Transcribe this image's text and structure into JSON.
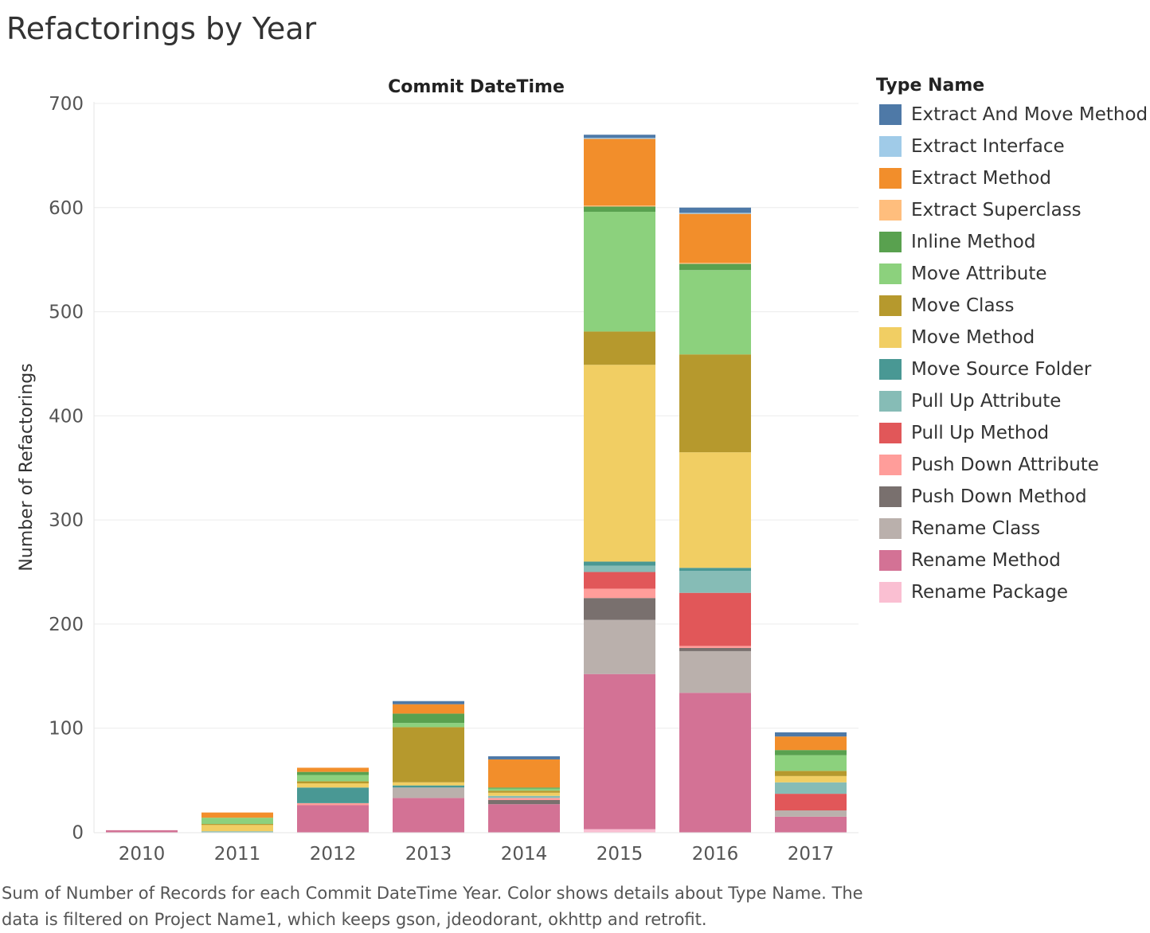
{
  "title": "Refactorings by Year",
  "caption": "Sum of Number of Records for each Commit DateTime Year.  Color shows details about Type Name. The data is filtered on Project Name1, which keeps gson, jdeodorant, okhttp and retrofit.",
  "legend_title": "Type Name",
  "colors": {
    "Extract And Move Method": "#4e79a7",
    "Extract Interface": "#a0cbe8",
    "Extract Method": "#f28e2b",
    "Extract Superclass": "#ffbe7d",
    "Inline Method": "#59a14f",
    "Move Attribute": "#8cd17d",
    "Move Class": "#b6992d",
    "Move Method": "#f1ce63",
    "Move Source Folder": "#499894",
    "Pull Up Attribute": "#86bcb6",
    "Pull Up Method": "#e15759",
    "Push Down Attribute": "#ff9d9a",
    "Push Down Method": "#79706e",
    "Rename Class": "#bab0ac",
    "Rename Method": "#d37295",
    "Rename Package": "#fabfd2"
  },
  "chart_data": {
    "type": "bar",
    "stacked": true,
    "title": "Refactorings by Year",
    "column_header": "Commit DateTime",
    "xlabel": "",
    "ylabel": "Number of Refactorings",
    "ylim": [
      -14,
      700
    ],
    "yticks": [
      0,
      100,
      200,
      300,
      400,
      500,
      600,
      700
    ],
    "grid": true,
    "legend_position": "right",
    "categories": [
      "2010",
      "2011",
      "2012",
      "2013",
      "2014",
      "2015",
      "2016",
      "2017"
    ],
    "series": [
      {
        "name": "Rename Package",
        "values": [
          0,
          0,
          0,
          0,
          0,
          3,
          0,
          0
        ]
      },
      {
        "name": "Rename Method",
        "values": [
          2,
          0,
          26,
          33,
          27,
          149,
          134,
          15
        ]
      },
      {
        "name": "Rename Class",
        "values": [
          0,
          0,
          0,
          10,
          0,
          52,
          40,
          6
        ]
      },
      {
        "name": "Push Down Method",
        "values": [
          0,
          0,
          0,
          0,
          4,
          21,
          3,
          0
        ]
      },
      {
        "name": "Push Down Attribute",
        "values": [
          0,
          0,
          2,
          0,
          2,
          9,
          2,
          0
        ]
      },
      {
        "name": "Pull Up Method",
        "values": [
          0,
          0,
          0,
          0,
          0,
          16,
          51,
          16
        ]
      },
      {
        "name": "Pull Up Attribute",
        "values": [
          0,
          1,
          0,
          0,
          2,
          6,
          21,
          11
        ]
      },
      {
        "name": "Move Source Folder",
        "values": [
          0,
          0,
          15,
          2,
          0,
          4,
          3,
          0
        ]
      },
      {
        "name": "Move Method",
        "values": [
          0,
          6,
          4,
          3,
          3,
          189,
          111,
          6
        ]
      },
      {
        "name": "Move Class",
        "values": [
          0,
          1,
          2,
          53,
          2,
          32,
          94,
          5
        ]
      },
      {
        "name": "Move Attribute",
        "values": [
          0,
          6,
          6,
          4,
          2,
          115,
          81,
          15
        ]
      },
      {
        "name": "Inline Method",
        "values": [
          0,
          0,
          3,
          9,
          1,
          5,
          6,
          5
        ]
      },
      {
        "name": "Extract Superclass",
        "values": [
          0,
          0,
          0,
          0,
          0,
          1,
          1,
          0
        ]
      },
      {
        "name": "Extract Method",
        "values": [
          0,
          5,
          4,
          9,
          27,
          64,
          47,
          13
        ]
      },
      {
        "name": "Extract Interface",
        "values": [
          0,
          0,
          0,
          0,
          0,
          1,
          1,
          0
        ]
      },
      {
        "name": "Extract And Move Method",
        "values": [
          0,
          0,
          0,
          3,
          3,
          3,
          5,
          4
        ]
      }
    ]
  }
}
